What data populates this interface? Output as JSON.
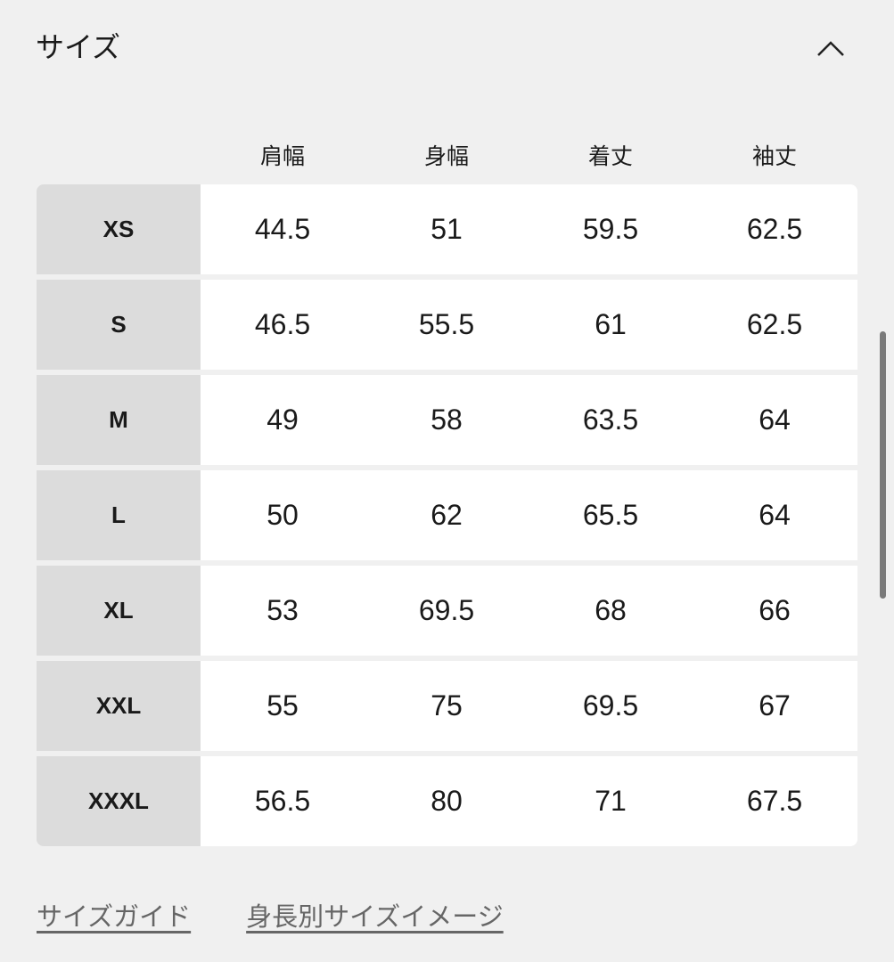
{
  "section": {
    "title": "サイズ",
    "toggle_icon": "chevron-up-icon",
    "expanded": true
  },
  "table": {
    "headers": [
      "肩幅",
      "身幅",
      "着丈",
      "袖丈"
    ],
    "rows": [
      {
        "size": "XS",
        "values": [
          "44.5",
          "51",
          "59.5",
          "62.5"
        ]
      },
      {
        "size": "S",
        "values": [
          "46.5",
          "55.5",
          "61",
          "62.5"
        ]
      },
      {
        "size": "M",
        "values": [
          "49",
          "58",
          "63.5",
          "64"
        ]
      },
      {
        "size": "L",
        "values": [
          "50",
          "62",
          "65.5",
          "64"
        ]
      },
      {
        "size": "XL",
        "values": [
          "53",
          "69.5",
          "68",
          "66"
        ]
      },
      {
        "size": "XXL",
        "values": [
          "55",
          "75",
          "69.5",
          "67"
        ]
      },
      {
        "size": "XXXL",
        "values": [
          "56.5",
          "80",
          "71",
          "67.5"
        ]
      }
    ]
  },
  "links": [
    "サイズガイド",
    "身長別サイズイメージ"
  ],
  "colors": {
    "background": "#f0f0f0",
    "size_cell": "#dcdcdc",
    "value_cell": "#ffffff",
    "link": "#666666"
  }
}
